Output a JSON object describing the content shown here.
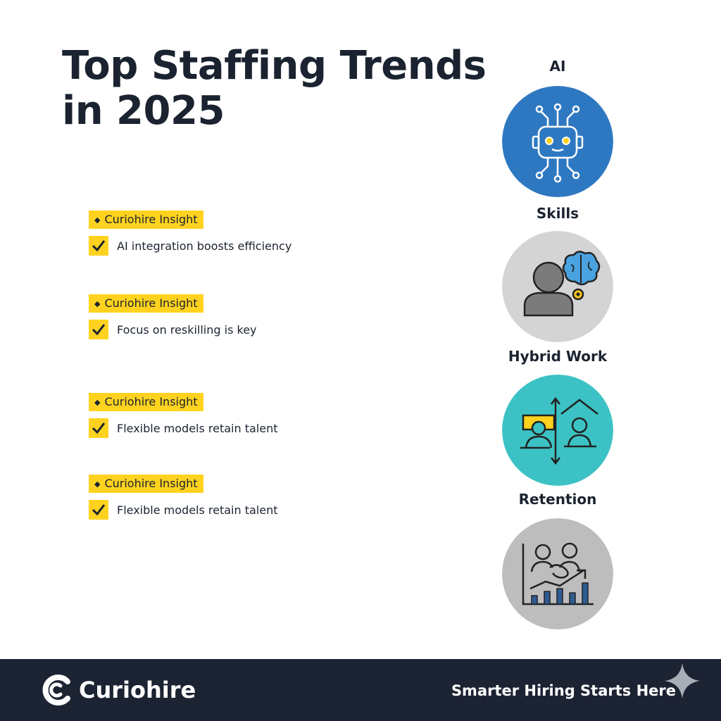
{
  "header": {
    "title": "Top Staffing Trends in 2025"
  },
  "insights": [
    {
      "badge": "Curiohire Insight",
      "text": "AI integration boosts efficiency"
    },
    {
      "badge": "Curiohire Insight",
      "text": "Focus on reskilling is key"
    },
    {
      "badge": "Curiohire Insight",
      "text": "Flexible models retain talent"
    },
    {
      "badge": "Curiohire Insight",
      "text": "Flexible models retain talent"
    }
  ],
  "trends": [
    {
      "label": "AI",
      "icon": "ai-robot-icon",
      "color": "#2e78c2"
    },
    {
      "label": "Skills",
      "icon": "person-brain-icon",
      "color": "#d4d4d4"
    },
    {
      "label": "Hybrid Work",
      "icon": "hybrid-work-icon",
      "color": "#3cc2c4"
    },
    {
      "label": "Retention",
      "icon": "retention-growth-icon",
      "color": "#bdbdbd"
    }
  ],
  "footer": {
    "brand": "Curiohire",
    "tagline": "Smarter Hiring Starts Here",
    "background": "#1c2333"
  },
  "colors": {
    "accent": "#ffd21f",
    "text": "#1b2330"
  }
}
